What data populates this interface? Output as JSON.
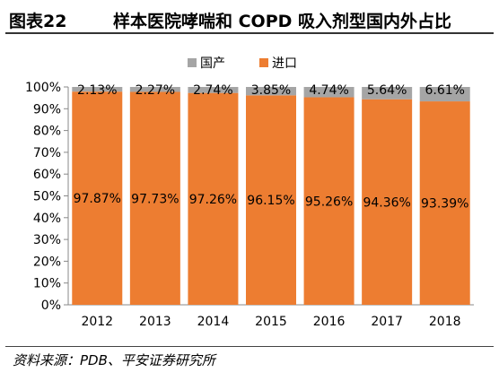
{
  "header": {
    "figure_no": "图表22",
    "title": "样本医院哮喘和 COPD 吸入剂型国内外占比"
  },
  "footer": {
    "source": "资料来源：PDB、平安证券研究所"
  },
  "chart_data": {
    "type": "bar",
    "stacked": true,
    "percent": true,
    "categories": [
      "2012",
      "2013",
      "2014",
      "2015",
      "2016",
      "2017",
      "2018"
    ],
    "series": [
      {
        "name": "进口",
        "color": "#ED7D31",
        "values": [
          97.87,
          97.73,
          97.26,
          96.15,
          95.26,
          94.36,
          93.39
        ],
        "labels": [
          "97.87%",
          "97.73%",
          "97.26%",
          "96.15%",
          "95.26%",
          "94.36%",
          "93.39%"
        ]
      },
      {
        "name": "国产",
        "color": "#A5A5A5",
        "values": [
          2.13,
          2.27,
          2.74,
          3.85,
          4.74,
          5.64,
          6.61
        ],
        "labels": [
          "2.13%",
          "2.27%",
          "2.74%",
          "3.85%",
          "4.74%",
          "5.64%",
          "6.61%"
        ]
      }
    ],
    "yticks": [
      "0%",
      "10%",
      "20%",
      "30%",
      "40%",
      "50%",
      "60%",
      "70%",
      "80%",
      "90%",
      "100%"
    ],
    "ylim": [
      0,
      100
    ],
    "legend_position": "top",
    "grid": false
  }
}
